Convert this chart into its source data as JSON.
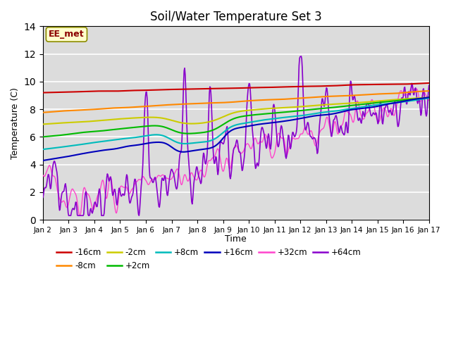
{
  "title": "Soil/Water Temperature Set 3",
  "xlabel": "Time",
  "ylabel": "Temperature (C)",
  "ylim": [
    0,
    14
  ],
  "xlim": [
    0,
    15
  ],
  "background_color": "#dcdcdc",
  "annotation_text": "EE_met",
  "annotation_bg": "#ffffcc",
  "annotation_border": "#8b0000",
  "tick_labels": [
    "Jan 2",
    "Jan 3",
    "Jan 4",
    "Jan 5",
    "Jan 6",
    "Jan 7",
    "Jan 8",
    "Jan 9",
    "Jan 10",
    "Jan 11",
    "Jan 12",
    "Jan 13",
    "Jan 14",
    "Jan 15",
    "Jan 16",
    "Jan 17"
  ],
  "series": {
    "-16cm": {
      "color": "#cc0000",
      "lw": 1.5
    },
    "-8cm": {
      "color": "#ff8800",
      "lw": 1.5
    },
    "-2cm": {
      "color": "#cccc00",
      "lw": 1.5
    },
    "+2cm": {
      "color": "#00bb00",
      "lw": 1.5
    },
    "+8cm": {
      "color": "#00bbbb",
      "lw": 1.5
    },
    "+16cm": {
      "color": "#0000bb",
      "lw": 1.5
    },
    "+32cm": {
      "color": "#ff44cc",
      "lw": 1.0
    },
    "+64cm": {
      "color": "#8800cc",
      "lw": 1.2
    }
  }
}
